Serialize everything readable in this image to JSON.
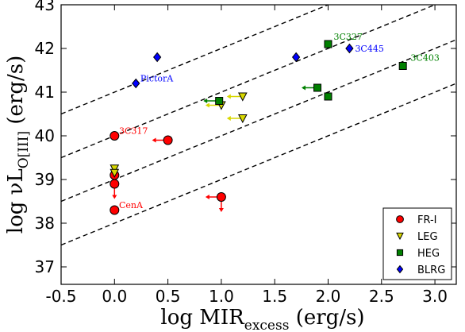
{
  "chart_data": {
    "type": "scatter",
    "xlabel": {
      "main": "log MIR",
      "sub": "excess",
      "tail": " (erg/s)"
    },
    "ylabel": {
      "main": "log νL",
      "sub": "O[III]",
      "tail": " (erg/s)"
    },
    "xlim": [
      -0.5,
      3.2
    ],
    "ylim": [
      36.6,
      43.0
    ],
    "x_ticks": [
      "-0.5",
      "0.0",
      "0.5",
      "1.0",
      "1.5",
      "2.0",
      "2.5",
      "3.0"
    ],
    "x_tick_values": [
      -0.5,
      0.0,
      0.5,
      1.0,
      1.5,
      2.0,
      2.5,
      3.0
    ],
    "y_ticks": [
      "37",
      "38",
      "39",
      "40",
      "41",
      "42",
      "43"
    ],
    "y_tick_values": [
      37,
      38,
      39,
      40,
      41,
      42,
      43
    ],
    "dashed_lines": [
      {
        "slope": 1,
        "intercept": 41.0
      },
      {
        "slope": 1,
        "intercept": 40.0
      },
      {
        "slope": 1,
        "intercept": 39.0
      },
      {
        "slope": 1,
        "intercept": 38.0
      }
    ],
    "series": [
      {
        "name": "FR-I",
        "marker": "circle",
        "color": "#ff0000",
        "points": [
          {
            "x": 0.0,
            "y": 40.0
          },
          {
            "x": 0.5,
            "y": 39.9,
            "upper_x": true
          },
          {
            "x": 0.0,
            "y": 39.1
          },
          {
            "x": 0.0,
            "y": 38.9,
            "upper_y": true
          },
          {
            "x": 0.0,
            "y": 38.3
          },
          {
            "x": 1.0,
            "y": 38.6,
            "upper_x": true,
            "upper_y": true
          }
        ]
      },
      {
        "name": "LEG",
        "marker": "triangle",
        "color": "#d8d800",
        "points": [
          {
            "x": 0.0,
            "y": 39.25
          },
          {
            "x": 0.0,
            "y": 39.15
          },
          {
            "x": 1.0,
            "y": 40.7,
            "upper_x": true
          },
          {
            "x": 1.2,
            "y": 40.9,
            "upper_x": true
          },
          {
            "x": 1.2,
            "y": 40.4,
            "upper_x": true
          }
        ]
      },
      {
        "name": "HEG",
        "marker": "square",
        "color": "#008000",
        "points": [
          {
            "x": 2.0,
            "y": 42.1
          },
          {
            "x": 2.7,
            "y": 41.6
          },
          {
            "x": 1.9,
            "y": 41.1,
            "upper_x": true
          },
          {
            "x": 2.0,
            "y": 40.9
          },
          {
            "x": 0.98,
            "y": 40.8,
            "upper_x": true
          }
        ]
      },
      {
        "name": "BLRG",
        "marker": "diamond",
        "color": "#0000ff",
        "points": [
          {
            "x": 0.4,
            "y": 41.8
          },
          {
            "x": 0.2,
            "y": 41.2
          },
          {
            "x": 1.7,
            "y": 41.8
          },
          {
            "x": 2.2,
            "y": 42.0
          }
        ]
      }
    ],
    "annotations": [
      {
        "text": "3C317",
        "x": 0.02,
        "y": 40.05,
        "color": "#ff0000"
      },
      {
        "text": "CenA",
        "x": 0.02,
        "y": 38.35,
        "color": "#ff0000"
      },
      {
        "text": "PictorA",
        "x": 0.22,
        "y": 41.25,
        "color": "#0000ff"
      },
      {
        "text": "3C327",
        "x": 2.03,
        "y": 42.2,
        "color": "#008000"
      },
      {
        "text": "3C445",
        "x": 2.23,
        "y": 41.93,
        "color": "#0000ff"
      },
      {
        "text": "3C403",
        "x": 2.75,
        "y": 41.72,
        "color": "#008000"
      }
    ],
    "legend": {
      "placement": "lower-right",
      "entries": [
        "FR-I",
        "LEG",
        "HEG",
        "BLRG"
      ]
    }
  }
}
